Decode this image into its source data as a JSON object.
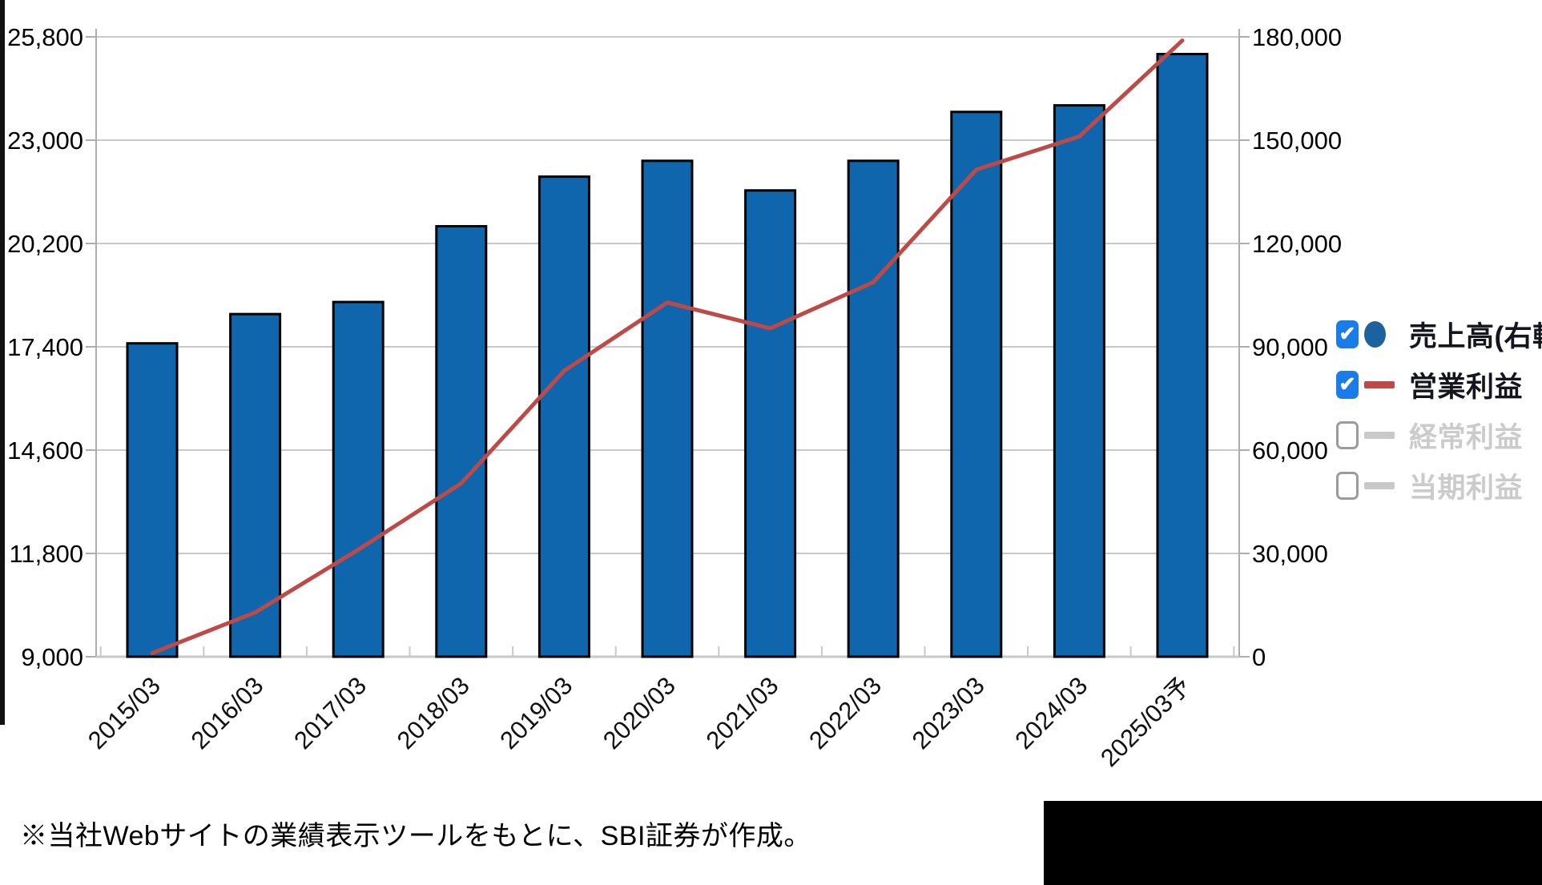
{
  "chart_data": {
    "type": "bar",
    "subtype": "combo-bar-line",
    "categories": [
      "2015/03",
      "2016/03",
      "2017/03",
      "2018/03",
      "2019/03",
      "2020/03",
      "2021/03",
      "2022/03",
      "2023/03",
      "2024/03",
      "2025/03予"
    ],
    "series": [
      {
        "name": "売上高(右軸)",
        "type": "bar",
        "axis": "right",
        "color": "#0F66AD",
        "visible": true,
        "values": [
          91000,
          99500,
          103000,
          125000,
          139400,
          144000,
          135400,
          144000,
          158200,
          160100,
          175000
        ]
      },
      {
        "name": "営業利益",
        "type": "line",
        "axis": "left",
        "color": "#BE4A47",
        "visible": true,
        "values": [
          9100,
          10200,
          11900,
          13700,
          16750,
          18600,
          17900,
          19150,
          22200,
          23100,
          25700
        ]
      },
      {
        "name": "経常利益",
        "type": "line",
        "axis": "left",
        "color": "#C9C9C9",
        "visible": false,
        "values": []
      },
      {
        "name": "当期利益",
        "type": "line",
        "axis": "left",
        "color": "#C9C9C9",
        "visible": false,
        "values": []
      }
    ],
    "left_axis": {
      "min": 9000,
      "max": 25800,
      "tick_values": [
        25800,
        23000,
        20200,
        17400,
        14600,
        11800,
        9000
      ],
      "tick_labels": [
        "25,800",
        "23,000",
        "20,200",
        "17,400",
        "14,600",
        "11,800",
        "9,000"
      ]
    },
    "right_axis": {
      "min": 0,
      "max": 180000,
      "tick_values": [
        180000,
        150000,
        120000,
        90000,
        60000,
        30000,
        0
      ],
      "tick_labels": [
        "180,000",
        "150,000",
        "120,000",
        "90,000",
        "60,000",
        "30,000",
        "0"
      ]
    },
    "grid": true,
    "legend_position": "right",
    "title": "",
    "xlabel": "",
    "ylabel": ""
  },
  "legend": {
    "items": [
      {
        "label": "売上高(右軸)",
        "checked": true,
        "marker": "circle",
        "marker_color": "#1B629F"
      },
      {
        "label": "営業利益",
        "checked": true,
        "marker": "line",
        "marker_color": "#BE4A47"
      },
      {
        "label": "経常利益",
        "checked": false,
        "marker": "line",
        "marker_color": "#C9C9C9"
      },
      {
        "label": "当期利益",
        "checked": false,
        "marker": "line",
        "marker_color": "#C9C9C9"
      }
    ],
    "checkbox_on_color": "#1A7CE8",
    "check_glyph": "✔"
  },
  "footer": {
    "note": "※当社Webサイトの業績表示ツールをもとに、SBI証券が作成。"
  },
  "style": {
    "grid_color": "#C9C9C9",
    "axis_color": "#ADADAD",
    "bar_border_color": "#000000",
    "tick_label_color": "#000000"
  }
}
